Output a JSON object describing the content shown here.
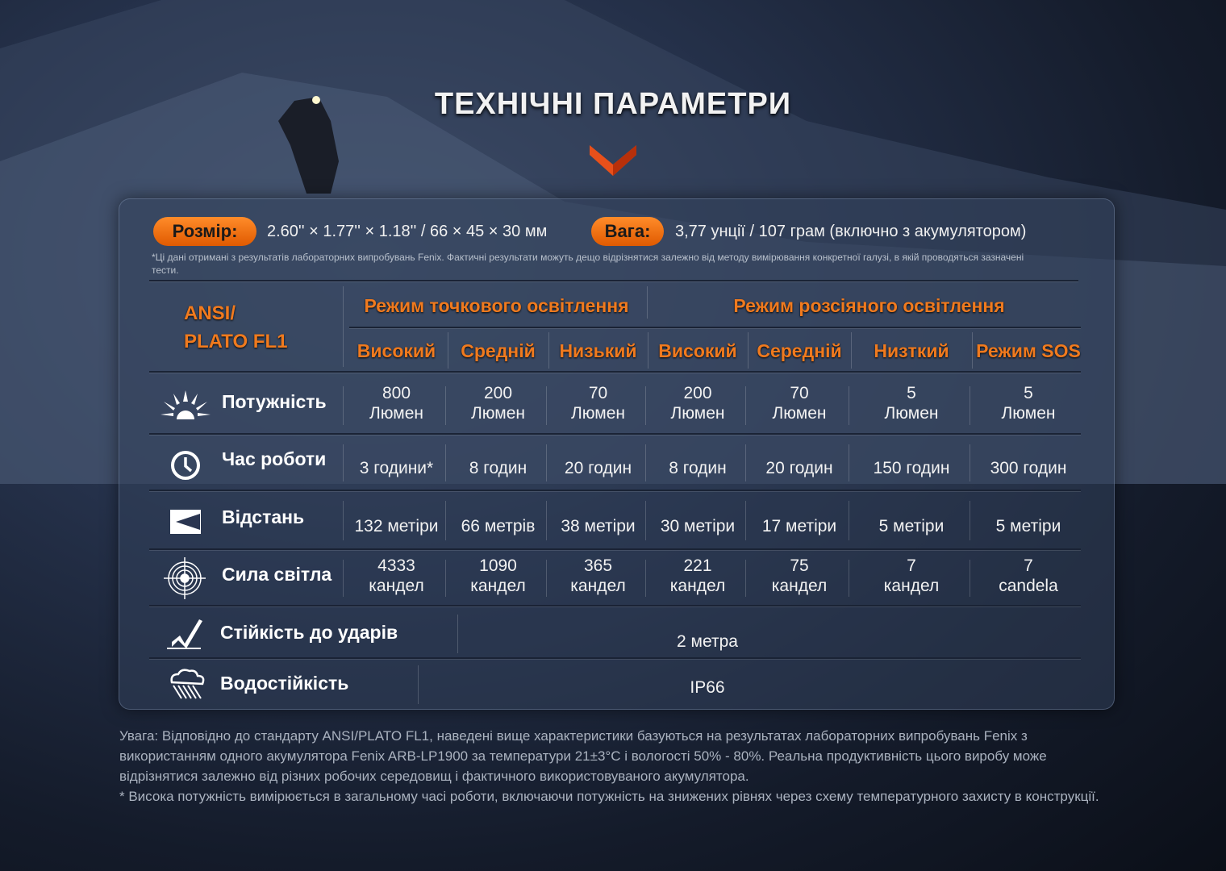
{
  "title": "ТЕХНІЧНІ ПАРАМЕТРИ",
  "size": {
    "label": "Розмір:",
    "value": "2.60'' × 1.77'' × 1.18'' / 66 × 45 × 30 мм"
  },
  "weight": {
    "label": "Вага:",
    "value": "3,77 унції / 107 грам (включно з акумулятором)"
  },
  "note": "*Ці дані отримані з результатів лабораторних випробувань Fenix. Фактичні результати можуть дещо відрізнятися залежно від методу вимірювання конкретної галузі, в якій проводяться зазначені тести.",
  "standard": {
    "line1": "ANSI/",
    "line2": "PLATO FL1"
  },
  "groups": [
    "Режим точкового освітлення",
    "Режим розсіяного освітлення"
  ],
  "modes": [
    "Високий",
    "Средній",
    "Низький",
    "Високий",
    "Середній",
    "Низткий",
    "Режим SOS"
  ],
  "colors": {
    "accent": "#f07a1e",
    "pill": "#ff8c2a"
  },
  "rows": [
    {
      "label": "Потужність",
      "icon": "sun-burst-icon",
      "cells": [
        [
          "800",
          "Люмен"
        ],
        [
          "200",
          "Люмен"
        ],
        [
          "70",
          "Люмен"
        ],
        [
          "200",
          "Люмен"
        ],
        [
          "70",
          "Люмен"
        ],
        [
          "5",
          "Люмен"
        ],
        [
          "5",
          "Люмен"
        ]
      ]
    },
    {
      "label": "Час роботи",
      "icon": "clock-icon",
      "cells": [
        [
          "3 години*"
        ],
        [
          "8 годин"
        ],
        [
          "20 годин"
        ],
        [
          "8 годин"
        ],
        [
          "20 годин"
        ],
        [
          "150 годин"
        ],
        [
          "300 годин"
        ]
      ]
    },
    {
      "label": "Відстань",
      "icon": "beam-distance-icon",
      "cells": [
        [
          "132 метіри"
        ],
        [
          "66 метрів"
        ],
        [
          "38 метіри"
        ],
        [
          "30 метіри"
        ],
        [
          "17 метіри"
        ],
        [
          "5 метіри"
        ],
        [
          "5 метіри"
        ]
      ]
    },
    {
      "label": "Сила світла",
      "icon": "target-icon",
      "cells": [
        [
          "4333",
          "кандел"
        ],
        [
          "1090",
          "кандел"
        ],
        [
          "365",
          "кандел"
        ],
        [
          "221",
          "кандел"
        ],
        [
          "75",
          "кандел"
        ],
        [
          "7",
          "кандел"
        ],
        [
          "7",
          "candela"
        ]
      ]
    }
  ],
  "impact": {
    "label": "Стійкість до ударів",
    "value": "2 метра",
    "icon": "impact-icon"
  },
  "water": {
    "label": "Водостійкість",
    "value": "IP66",
    "icon": "rain-cloud-icon"
  },
  "footer": [
    "Увага: Відповідно до стандарту ANSI/PLATO FL1, наведені вище характеристики базуються на результатах лабораторних випробувань Fenix з використанням одного акумулятора Fenix ARB-LP1900 за температури 21±3°C і вологості 50% - 80%. Реальна продуктивність цього виробу може відрізнятися залежно від різних робочих середовищ і фактичного використовуваного акумулятора.",
    "* Висока потужність вимірюється в загальному часі роботи, включаючи потужність на знижених рівнях через схему температурного захисту в конструкції."
  ]
}
